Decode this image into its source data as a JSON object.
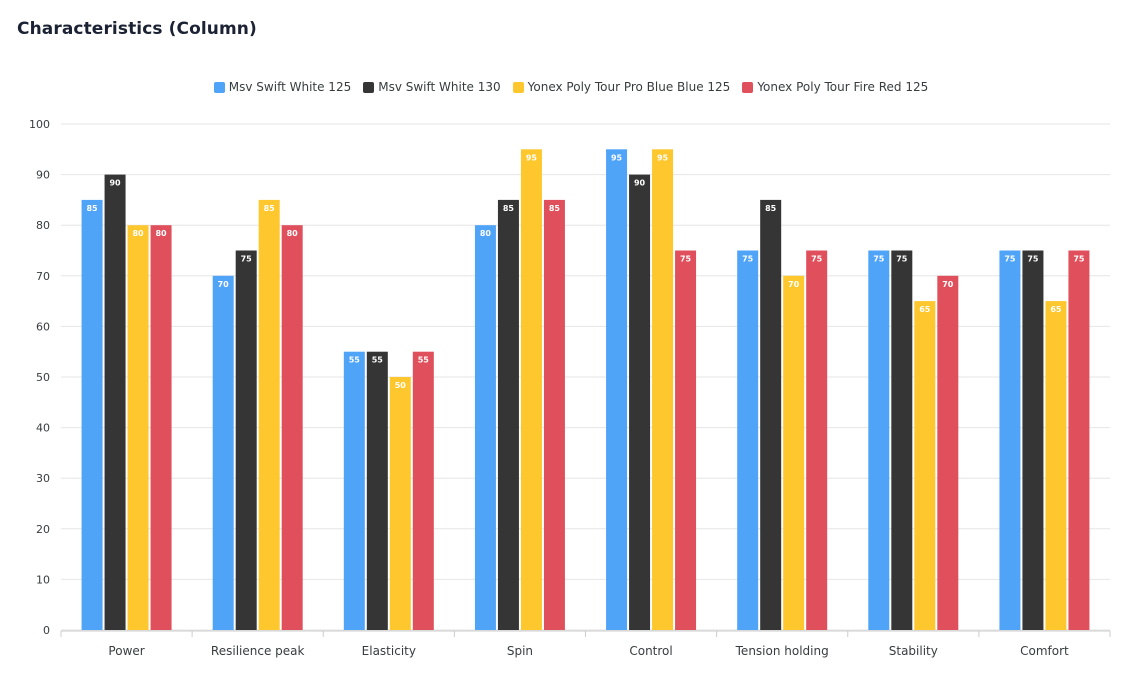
{
  "page": {
    "title": "Characteristics (Column)"
  },
  "chart_data": {
    "type": "bar",
    "title": "Characteristics (Column)",
    "categories": [
      "Power",
      "Resilience peak",
      "Elasticity",
      "Spin",
      "Control",
      "Tension holding",
      "Stability",
      "Comfort"
    ],
    "series": [
      {
        "name": "Msv Swift White 125",
        "color": "#4fa4f8",
        "values": [
          85,
          70,
          55,
          80,
          95,
          75,
          75,
          75
        ]
      },
      {
        "name": "Msv Swift White 130",
        "color": "#353535",
        "values": [
          90,
          75,
          55,
          85,
          90,
          85,
          75,
          75
        ]
      },
      {
        "name": "Yonex Poly Tour Pro Blue Blue 125",
        "color": "#fdc72d",
        "values": [
          80,
          85,
          50,
          95,
          95,
          70,
          65,
          65
        ]
      },
      {
        "name": "Yonex Poly Tour Fire Red 125",
        "color": "#e0505c",
        "values": [
          80,
          80,
          55,
          85,
          75,
          75,
          70,
          75
        ]
      }
    ],
    "yticks": [
      "0",
      "10",
      "20",
      "30",
      "40",
      "50",
      "60",
      "70",
      "80",
      "90",
      "100"
    ],
    "ylim": [
      0,
      100
    ],
    "grid": true,
    "legend": "top-center",
    "xlabel": "",
    "ylabel": ""
  }
}
